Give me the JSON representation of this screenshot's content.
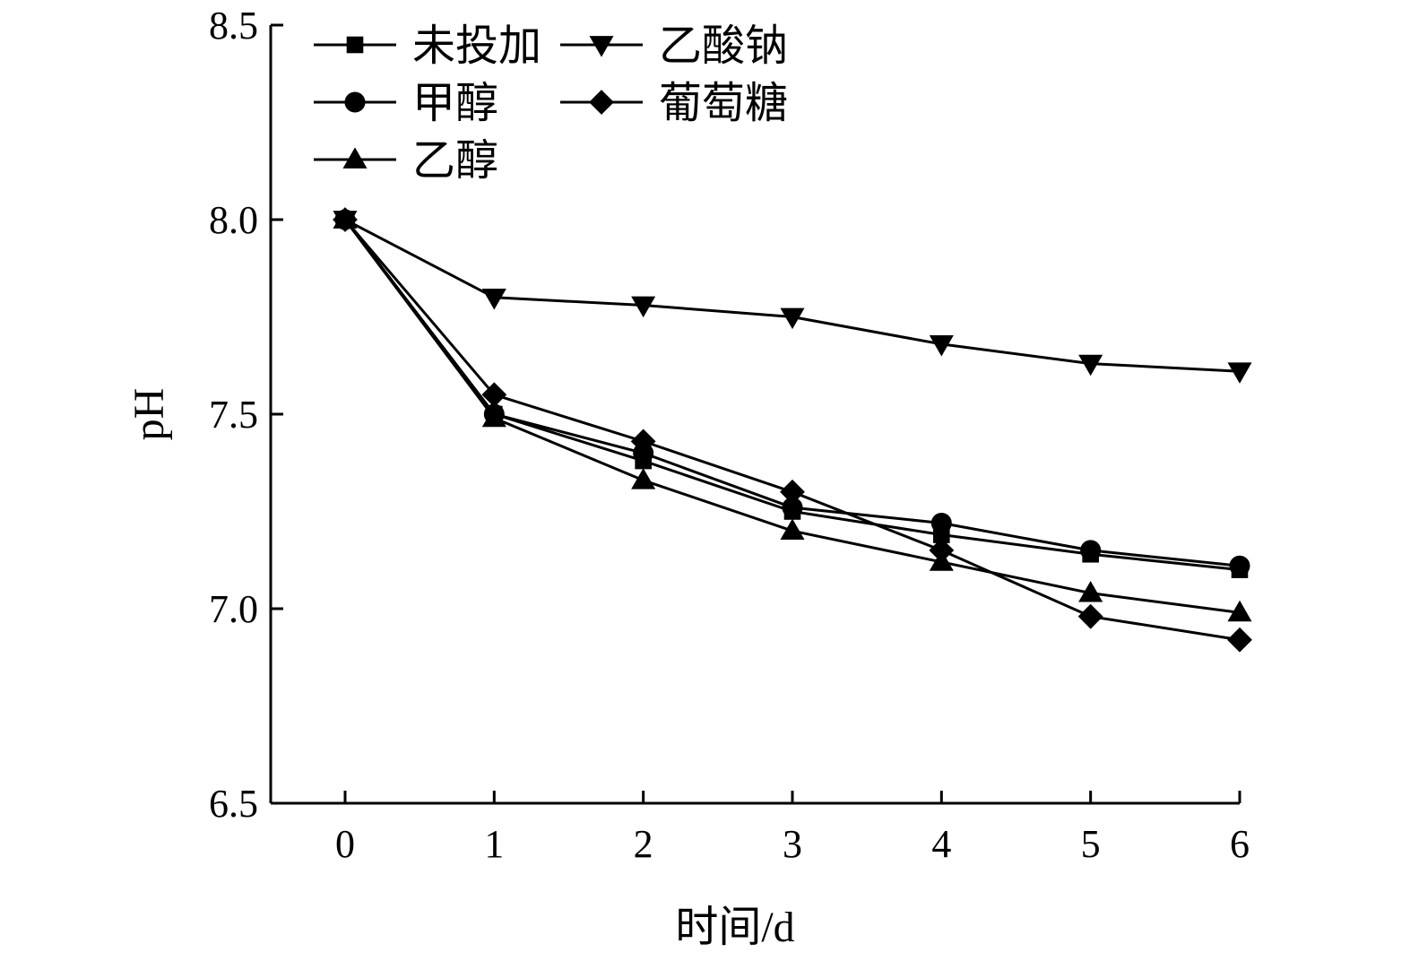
{
  "chart_data": {
    "type": "line",
    "title": "",
    "xlabel": "时间/d",
    "ylabel": "pH",
    "x": [
      0,
      1,
      2,
      3,
      4,
      5,
      6
    ],
    "xlim": [
      -0.5,
      6
    ],
    "ylim": [
      6.5,
      8.5
    ],
    "xticks": [
      "0",
      "1",
      "2",
      "3",
      "4",
      "5",
      "6"
    ],
    "yticks": [
      "6.5",
      "7.0",
      "7.5",
      "8.0",
      "8.5"
    ],
    "grid": false,
    "legend_position": "top-left",
    "color": "#000000",
    "series": [
      {
        "name": "未投加",
        "marker": "square",
        "values": [
          8.0,
          7.5,
          7.38,
          7.25,
          7.19,
          7.14,
          7.1
        ]
      },
      {
        "name": "甲醇",
        "marker": "circle",
        "values": [
          8.0,
          7.5,
          7.4,
          7.26,
          7.22,
          7.15,
          7.11
        ]
      },
      {
        "name": "乙醇",
        "marker": "triangle-up",
        "values": [
          8.0,
          7.49,
          7.33,
          7.2,
          7.12,
          7.04,
          6.99
        ]
      },
      {
        "name": "乙酸钠",
        "marker": "triangle-down",
        "values": [
          8.0,
          7.8,
          7.78,
          7.75,
          7.68,
          7.63,
          7.61
        ]
      },
      {
        "name": "葡萄糖",
        "marker": "diamond",
        "values": [
          8.0,
          7.55,
          7.43,
          7.3,
          7.15,
          6.98,
          6.92
        ]
      }
    ]
  }
}
